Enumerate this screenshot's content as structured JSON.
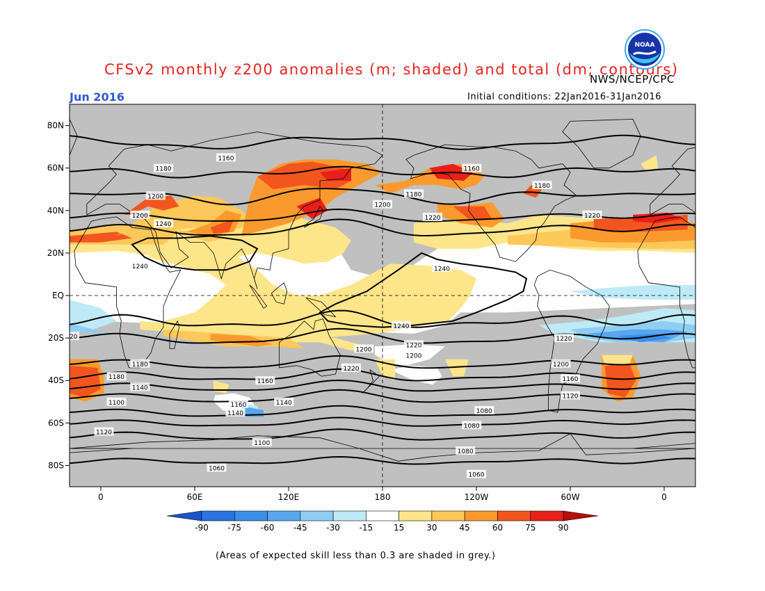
{
  "title": "CFSv2 monthly z200 anomalies (m; shaded) and total (dm; contours)",
  "agency": "NWS/NCEP/CPC",
  "month": "Jun 2016",
  "initial_conditions": "Initial conditions: 22Jan2016-31Jan2016",
  "skill_note": "(Areas of expected skill less than 0.3 are shaded in grey.)",
  "logo_text": "NOAA",
  "colors": {
    "title": "#e8231e",
    "month": "#2f58d4",
    "skill_grey": "#c0c0c0"
  },
  "chart_data": {
    "type": "heatmap",
    "projection": "equirectangular",
    "lon_range": [
      -20,
      380
    ],
    "lat_range": [
      -90,
      90
    ],
    "x_ticks": [
      "0",
      "60E",
      "120E",
      "180",
      "120W",
      "60W",
      "0"
    ],
    "y_ticks": [
      "80N",
      "60N",
      "40N",
      "20N",
      "EQ",
      "20S",
      "40S",
      "60S",
      "80S"
    ],
    "colorbar": {
      "levels": [
        -90,
        -75,
        -60,
        -45,
        -30,
        -15,
        15,
        30,
        45,
        60,
        75,
        90
      ],
      "labels": [
        "-90",
        "-75",
        "-60",
        "-45",
        "-30",
        "-15",
        "15",
        "30",
        "45",
        "60",
        "75",
        "90"
      ],
      "colors": [
        "#1b55d0",
        "#2b73e0",
        "#3b8ee8",
        "#5aa6ee",
        "#8fcdf2",
        "#bdeaf6",
        "#ffffff",
        "#fde58a",
        "#fdc85a",
        "#fa9a2e",
        "#f2561e",
        "#e8201a",
        "#b80f0c"
      ]
    },
    "contour_labels": [
      "1160",
      "1180",
      "1160",
      "1200",
      "1180",
      "1220",
      "1200",
      "1240",
      "1180",
      "1200",
      "1220",
      "1220",
      "1240",
      "1240",
      "1240",
      "1220",
      "1200",
      "1220",
      "1200",
      "1180",
      "1200",
      "1220",
      "1180",
      "1160",
      "1160",
      "1140",
      "1120",
      "1100",
      "1140",
      "1160",
      "1140",
      "1080",
      "1080",
      "1120",
      "1100",
      "1080",
      "1060",
      "1060"
    ]
  }
}
